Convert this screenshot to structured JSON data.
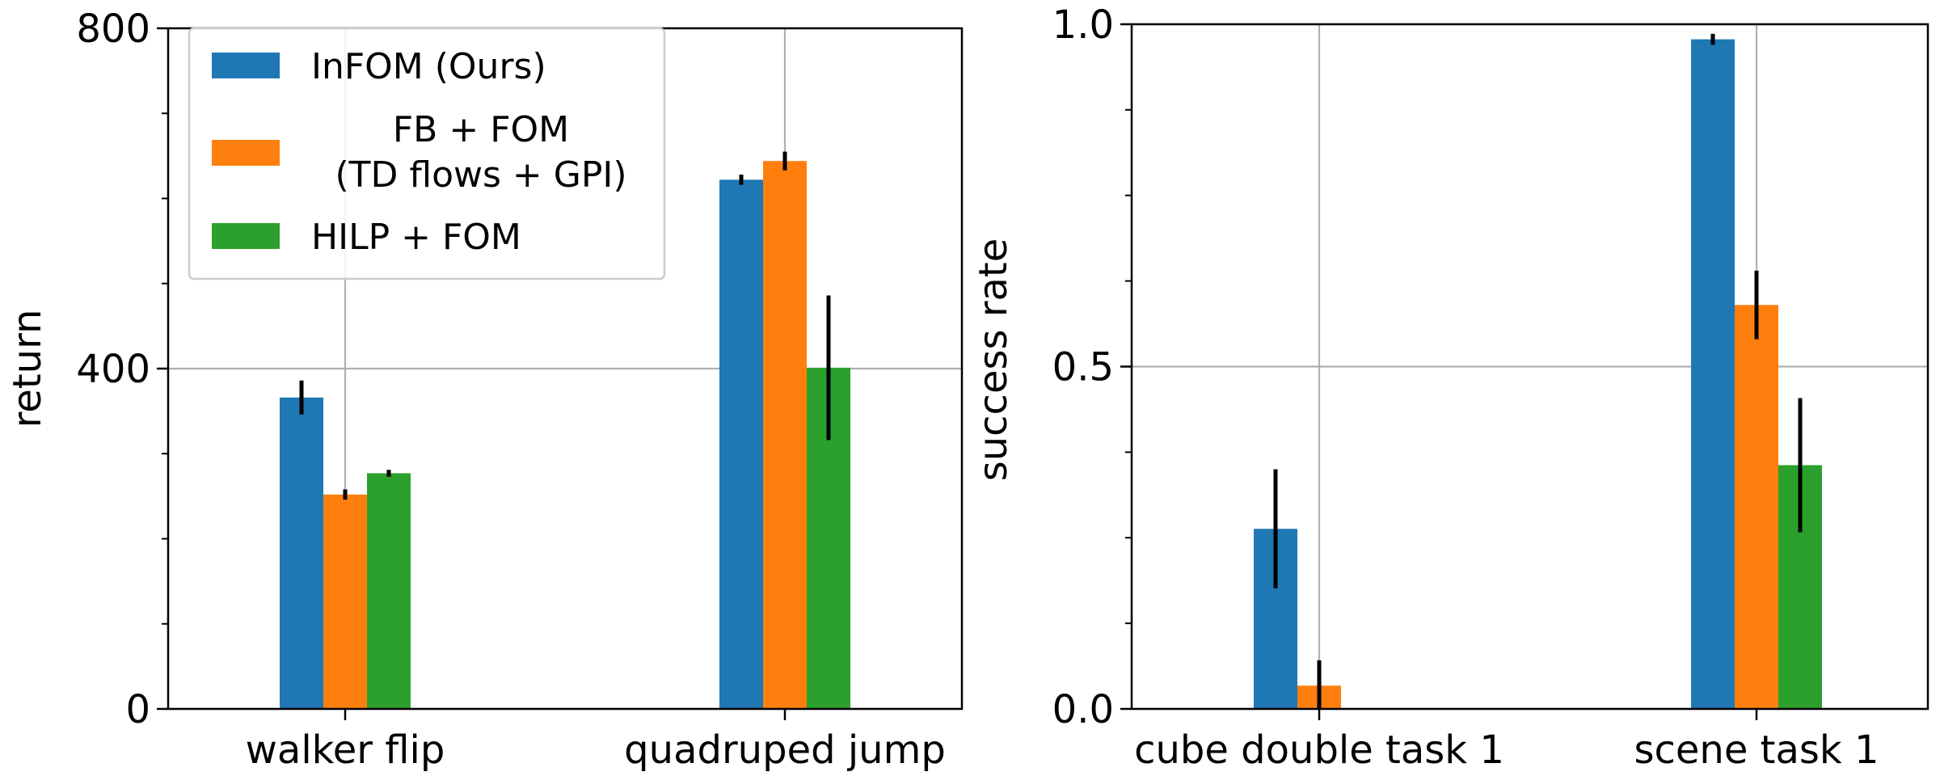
{
  "chart_data": [
    {
      "type": "bar",
      "categories": [
        "walker flip",
        "quadruped jump"
      ],
      "ylabel": "return",
      "ylim": [
        0,
        800
      ],
      "yticks": [
        0,
        400,
        800
      ],
      "grid": true,
      "legend": {
        "position": "top-left",
        "entries": [
          {
            "lines": [
              "InFOM (Ours)"
            ],
            "color": "#1f77b4"
          },
          {
            "lines": [
              "FB + FOM",
              "(TD flows + GPI)"
            ],
            "color": "#ff7f0e"
          },
          {
            "lines": [
              "HILP + FOM"
            ],
            "color": "#2ca02c"
          }
        ]
      },
      "series": [
        {
          "name": "InFOM (Ours)",
          "color": "#1f77b4",
          "values": [
            366,
            622
          ],
          "errors": [
            20,
            6
          ]
        },
        {
          "name": "FB + FOM (TD flows + GPI)",
          "color": "#ff7f0e",
          "values": [
            252,
            644
          ],
          "errors": [
            6,
            11
          ]
        },
        {
          "name": "HILP + FOM",
          "color": "#2ca02c",
          "values": [
            277,
            401
          ],
          "errors": [
            4,
            85
          ]
        }
      ]
    },
    {
      "type": "bar",
      "categories": [
        "cube double task 1",
        "scene task 1"
      ],
      "ylabel": "success rate",
      "ylim": [
        0,
        1.0
      ],
      "yticks": [
        "0.0",
        "0.5",
        "1.0"
      ],
      "grid": true,
      "series": [
        {
          "name": "InFOM (Ours)",
          "color": "#1f77b4",
          "values": [
            0.263,
            0.978
          ],
          "errors": [
            0.087,
            0.008
          ]
        },
        {
          "name": "FB + FOM (TD flows + GPI)",
          "color": "#ff7f0e",
          "values": [
            0.034,
            0.59
          ],
          "errors": [
            0.037,
            0.05
          ]
        },
        {
          "name": "HILP + FOM",
          "color": "#2ca02c",
          "values": [
            0.0,
            0.356
          ],
          "errors": [
            0.0,
            0.098
          ]
        }
      ]
    }
  ]
}
